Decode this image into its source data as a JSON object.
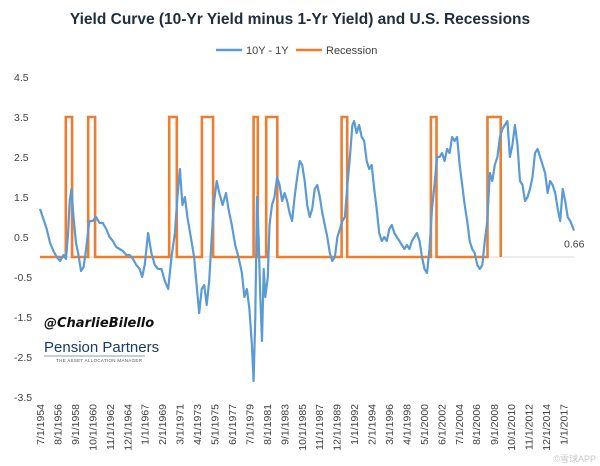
{
  "chart_data": {
    "type": "line",
    "title": "Yield Curve (10-Yr Yield minus 1-Yr Yield) and U.S. Recessions",
    "xlabel": "",
    "ylabel": "",
    "ylim": [
      -3.5,
      4.5
    ],
    "y_ticks": [
      "4.5",
      "3.5",
      "2.5",
      "1.5",
      "0.5",
      "-0.5",
      "-1.5",
      "-2.5",
      "-3.5"
    ],
    "x_range": [
      1954.5,
      2018.25
    ],
    "x_ticks": [
      {
        "label": "7/1/1954",
        "x": 1954.5
      },
      {
        "label": "8/1/1956",
        "x": 1956.58
      },
      {
        "label": "9/1/1958",
        "x": 1958.67
      },
      {
        "label": "10/1/1960",
        "x": 1960.75
      },
      {
        "label": "11/1/1962",
        "x": 1962.83
      },
      {
        "label": "12/1/1964",
        "x": 1964.92
      },
      {
        "label": "1/1/1967",
        "x": 1967.0
      },
      {
        "label": "2/1/1969",
        "x": 1969.08
      },
      {
        "label": "3/1/1971",
        "x": 1971.17
      },
      {
        "label": "4/1/1973",
        "x": 1973.25
      },
      {
        "label": "5/1/1975",
        "x": 1975.33
      },
      {
        "label": "6/1/1977",
        "x": 1977.42
      },
      {
        "label": "7/1/1979",
        "x": 1979.5
      },
      {
        "label": "8/1/1981",
        "x": 1981.58
      },
      {
        "label": "9/1/1983",
        "x": 1983.67
      },
      {
        "label": "10/1/1985",
        "x": 1985.75
      },
      {
        "label": "11/1/1987",
        "x": 1987.83
      },
      {
        "label": "12/1/1989",
        "x": 1989.92
      },
      {
        "label": "1/1/1992",
        "x": 1992.0
      },
      {
        "label": "2/1/1994",
        "x": 1994.08
      },
      {
        "label": "3/1/1996",
        "x": 1996.17
      },
      {
        "label": "4/1/1998",
        "x": 1998.25
      },
      {
        "label": "5/1/2000",
        "x": 2000.33
      },
      {
        "label": "6/1/2002",
        "x": 2002.42
      },
      {
        "label": "7/1/2004",
        "x": 2004.5
      },
      {
        "label": "8/1/2006",
        "x": 2006.58
      },
      {
        "label": "9/1/2008",
        "x": 2008.67
      },
      {
        "label": "10/1/2010",
        "x": 2010.75
      },
      {
        "label": "11/1/2012",
        "x": 2012.83
      },
      {
        "label": "12/1/2014",
        "x": 2014.92
      },
      {
        "label": "1/1/2017",
        "x": 2017.0
      }
    ],
    "legend_position": "top-center",
    "grid": false,
    "series": [
      {
        "name": "10Y - 1Y",
        "color": "#5b9bd5",
        "points": [
          [
            1954.5,
            1.2
          ],
          [
            1954.9,
            0.95
          ],
          [
            1955.3,
            0.7
          ],
          [
            1955.7,
            0.35
          ],
          [
            1956.1,
            0.15
          ],
          [
            1956.5,
            0.0
          ],
          [
            1956.9,
            -0.1
          ],
          [
            1957.3,
            0.05
          ],
          [
            1957.6,
            -0.05
          ],
          [
            1957.85,
            0.6
          ],
          [
            1958.05,
            1.4
          ],
          [
            1958.25,
            1.7
          ],
          [
            1958.5,
            1.0
          ],
          [
            1958.8,
            0.35
          ],
          [
            1959.1,
            0.05
          ],
          [
            1959.4,
            -0.35
          ],
          [
            1959.7,
            -0.25
          ],
          [
            1960.0,
            0.2
          ],
          [
            1960.4,
            0.9
          ],
          [
            1960.8,
            0.9
          ],
          [
            1961.2,
            1.0
          ],
          [
            1961.6,
            0.85
          ],
          [
            1962.0,
            0.85
          ],
          [
            1962.4,
            0.7
          ],
          [
            1962.8,
            0.5
          ],
          [
            1963.2,
            0.4
          ],
          [
            1963.6,
            0.25
          ],
          [
            1964.0,
            0.2
          ],
          [
            1964.4,
            0.15
          ],
          [
            1964.8,
            0.05
          ],
          [
            1965.2,
            0.05
          ],
          [
            1965.6,
            -0.05
          ],
          [
            1966.0,
            -0.2
          ],
          [
            1966.4,
            -0.3
          ],
          [
            1966.7,
            -0.5
          ],
          [
            1967.0,
            -0.2
          ],
          [
            1967.4,
            0.6
          ],
          [
            1967.8,
            0.1
          ],
          [
            1968.2,
            -0.2
          ],
          [
            1968.6,
            -0.3
          ],
          [
            1969.0,
            -0.3
          ],
          [
            1969.4,
            -0.6
          ],
          [
            1969.8,
            -0.8
          ],
          [
            1970.2,
            0.0
          ],
          [
            1970.6,
            0.6
          ],
          [
            1970.9,
            1.5
          ],
          [
            1971.2,
            2.2
          ],
          [
            1971.5,
            1.3
          ],
          [
            1971.8,
            1.5
          ],
          [
            1972.1,
            1.0
          ],
          [
            1972.5,
            0.5
          ],
          [
            1972.9,
            0.0
          ],
          [
            1973.2,
            -0.7
          ],
          [
            1973.5,
            -1.4
          ],
          [
            1973.8,
            -0.8
          ],
          [
            1974.1,
            -0.7
          ],
          [
            1974.4,
            -1.2
          ],
          [
            1974.7,
            -0.6
          ],
          [
            1975.0,
            0.5
          ],
          [
            1975.3,
            1.4
          ],
          [
            1975.6,
            1.9
          ],
          [
            1975.9,
            1.6
          ],
          [
            1976.3,
            1.3
          ],
          [
            1976.7,
            1.6
          ],
          [
            1977.0,
            1.2
          ],
          [
            1977.4,
            0.8
          ],
          [
            1977.8,
            0.3
          ],
          [
            1978.2,
            0.0
          ],
          [
            1978.6,
            -0.4
          ],
          [
            1978.9,
            -1.0
          ],
          [
            1979.2,
            -0.8
          ],
          [
            1979.5,
            -1.3
          ],
          [
            1979.8,
            -2.2
          ],
          [
            1980.0,
            -3.1
          ],
          [
            1980.2,
            -1.5
          ],
          [
            1980.4,
            1.5
          ],
          [
            1980.6,
            0.5
          ],
          [
            1980.8,
            -1.0
          ],
          [
            1981.0,
            -2.1
          ],
          [
            1981.2,
            -0.3
          ],
          [
            1981.4,
            -1.0
          ],
          [
            1981.7,
            -0.5
          ],
          [
            1981.9,
            0.8
          ],
          [
            1982.2,
            1.3
          ],
          [
            1982.5,
            1.5
          ],
          [
            1982.8,
            2.0
          ],
          [
            1983.1,
            1.8
          ],
          [
            1983.4,
            1.4
          ],
          [
            1983.7,
            1.6
          ],
          [
            1984.0,
            1.4
          ],
          [
            1984.3,
            1.1
          ],
          [
            1984.6,
            0.9
          ],
          [
            1984.9,
            1.5
          ],
          [
            1985.2,
            2.0
          ],
          [
            1985.5,
            2.4
          ],
          [
            1985.8,
            2.3
          ],
          [
            1986.1,
            1.9
          ],
          [
            1986.4,
            1.3
          ],
          [
            1986.7,
            1.0
          ],
          [
            1987.0,
            1.2
          ],
          [
            1987.3,
            1.7
          ],
          [
            1987.6,
            1.8
          ],
          [
            1987.9,
            1.5
          ],
          [
            1988.2,
            1.1
          ],
          [
            1988.5,
            0.8
          ],
          [
            1988.8,
            0.5
          ],
          [
            1989.1,
            0.1
          ],
          [
            1989.4,
            -0.1
          ],
          [
            1989.7,
            0.0
          ],
          [
            1990.0,
            0.5
          ],
          [
            1990.3,
            0.7
          ],
          [
            1990.6,
            0.9
          ],
          [
            1990.9,
            1.0
          ],
          [
            1991.2,
            1.8
          ],
          [
            1991.5,
            2.5
          ],
          [
            1991.8,
            3.3
          ],
          [
            1992.0,
            3.4
          ],
          [
            1992.3,
            3.1
          ],
          [
            1992.6,
            3.3
          ],
          [
            1992.9,
            3.0
          ],
          [
            1993.2,
            2.9
          ],
          [
            1993.5,
            2.4
          ],
          [
            1993.8,
            2.2
          ],
          [
            1994.1,
            2.3
          ],
          [
            1994.4,
            1.7
          ],
          [
            1994.7,
            1.2
          ],
          [
            1995.0,
            0.6
          ],
          [
            1995.3,
            0.4
          ],
          [
            1995.6,
            0.5
          ],
          [
            1995.9,
            0.4
          ],
          [
            1996.2,
            0.7
          ],
          [
            1996.5,
            0.8
          ],
          [
            1996.8,
            0.6
          ],
          [
            1997.1,
            0.5
          ],
          [
            1997.4,
            0.4
          ],
          [
            1997.7,
            0.3
          ],
          [
            1998.0,
            0.2
          ],
          [
            1998.3,
            0.3
          ],
          [
            1998.6,
            0.2
          ],
          [
            1998.9,
            0.4
          ],
          [
            1999.2,
            0.5
          ],
          [
            1999.5,
            0.6
          ],
          [
            1999.8,
            0.4
          ],
          [
            2000.1,
            0.0
          ],
          [
            2000.4,
            -0.3
          ],
          [
            2000.7,
            -0.4
          ],
          [
            2001.0,
            0.2
          ],
          [
            2001.3,
            1.2
          ],
          [
            2001.6,
            1.8
          ],
          [
            2001.9,
            2.5
          ],
          [
            2002.2,
            2.5
          ],
          [
            2002.5,
            2.6
          ],
          [
            2002.8,
            2.4
          ],
          [
            2003.1,
            2.7
          ],
          [
            2003.4,
            2.6
          ],
          [
            2003.7,
            3.0
          ],
          [
            2004.0,
            2.9
          ],
          [
            2004.3,
            3.0
          ],
          [
            2004.6,
            2.3
          ],
          [
            2004.9,
            1.8
          ],
          [
            2005.2,
            1.3
          ],
          [
            2005.5,
            0.9
          ],
          [
            2005.8,
            0.4
          ],
          [
            2006.1,
            0.2
          ],
          [
            2006.4,
            0.1
          ],
          [
            2006.7,
            -0.2
          ],
          [
            2007.0,
            -0.3
          ],
          [
            2007.3,
            -0.2
          ],
          [
            2007.6,
            0.4
          ],
          [
            2007.9,
            0.9
          ],
          [
            2008.2,
            2.1
          ],
          [
            2008.5,
            1.9
          ],
          [
            2008.8,
            2.3
          ],
          [
            2009.1,
            2.5
          ],
          [
            2009.4,
            3.0
          ],
          [
            2009.7,
            3.2
          ],
          [
            2010.0,
            3.3
          ],
          [
            2010.3,
            3.4
          ],
          [
            2010.6,
            2.5
          ],
          [
            2010.9,
            2.8
          ],
          [
            2011.2,
            3.3
          ],
          [
            2011.5,
            2.8
          ],
          [
            2011.8,
            1.9
          ],
          [
            2012.1,
            1.8
          ],
          [
            2012.4,
            1.4
          ],
          [
            2012.7,
            1.5
          ],
          [
            2013.0,
            1.7
          ],
          [
            2013.3,
            2.0
          ],
          [
            2013.6,
            2.6
          ],
          [
            2013.9,
            2.7
          ],
          [
            2014.2,
            2.5
          ],
          [
            2014.5,
            2.3
          ],
          [
            2014.8,
            2.1
          ],
          [
            2015.1,
            1.6
          ],
          [
            2015.4,
            1.9
          ],
          [
            2015.7,
            1.8
          ],
          [
            2016.0,
            1.6
          ],
          [
            2016.3,
            1.2
          ],
          [
            2016.6,
            0.9
          ],
          [
            2016.9,
            1.7
          ],
          [
            2017.2,
            1.4
          ],
          [
            2017.5,
            1.0
          ],
          [
            2017.8,
            0.9
          ],
          [
            2018.0,
            0.8
          ],
          [
            2018.25,
            0.66
          ]
        ]
      },
      {
        "name": "Recession",
        "color": "#ed7d31",
        "periods": [
          [
            1957.58,
            1958.33
          ],
          [
            1960.25,
            1961.08
          ],
          [
            1969.92,
            1970.83
          ],
          [
            1973.83,
            1975.17
          ],
          [
            1980.0,
            1980.5
          ],
          [
            1981.5,
            1982.83
          ],
          [
            1990.5,
            1991.17
          ],
          [
            2001.17,
            2001.83
          ],
          [
            2007.92,
            2009.5
          ]
        ],
        "on_value": 3.5,
        "off_value": 0
      }
    ],
    "end_label": "0.66"
  },
  "annotations": {
    "handle": "@CharlieBilello",
    "logo_main": "Pension Partners",
    "logo_sub": "THE ASSET ALLOCATION MANAGER",
    "watermark": "©雪球APP"
  }
}
